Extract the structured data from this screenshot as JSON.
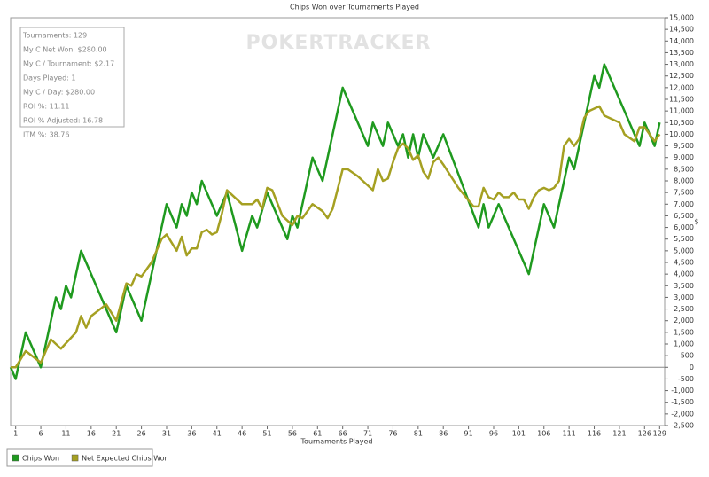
{
  "chart_data": {
    "type": "line",
    "title": "Chips Won over Tournaments Played",
    "xlabel": "Tournaments Played",
    "ylabel": "$",
    "watermark": "POKERTRACKER",
    "info_box": [
      "Tournaments: 129",
      "My C Net Won: $280.00",
      "My C / Tournament: $2.17",
      "Days Played: 1",
      "My C / Day: $280.00",
      "ROI %: 11.11",
      "ROI % Adjusted: 16.78",
      "ITM %: 38.76"
    ],
    "xlim": [
      0,
      130
    ],
    "ylim": [
      -2500,
      15000
    ],
    "xticks": [
      1,
      6,
      11,
      16,
      21,
      26,
      31,
      36,
      41,
      46,
      51,
      56,
      61,
      66,
      71,
      76,
      81,
      86,
      91,
      96,
      101,
      106,
      111,
      116,
      121,
      126,
      129
    ],
    "yticks": [
      {
        "value": -2500,
        "label": "-2,500"
      },
      {
        "value": -2000,
        "label": "-2,000"
      },
      {
        "value": -1500,
        "label": "-1,500"
      },
      {
        "value": -1000,
        "label": "-1,000"
      },
      -500,
      0,
      500,
      {
        "value": 1000,
        "label": "1,000"
      },
      {
        "value": 1500,
        "label": "1,500"
      },
      {
        "value": 2000,
        "label": "2,000"
      },
      {
        "value": 2500,
        "label": "2,500"
      },
      {
        "value": 3000,
        "label": "3,000"
      },
      {
        "value": 3500,
        "label": "3,500"
      },
      {
        "value": 4000,
        "label": "4,000"
      },
      {
        "value": 4500,
        "label": "4,500"
      },
      {
        "value": 5000,
        "label": "5,000"
      },
      {
        "value": 5500,
        "label": "5,500"
      },
      {
        "value": 6000,
        "label": "6,000"
      },
      {
        "value": 6500,
        "label": "6,500"
      },
      {
        "value": 7000,
        "label": "7,000"
      },
      {
        "value": 7500,
        "label": "7,500"
      },
      {
        "value": 8000,
        "label": "8,000"
      },
      {
        "value": 8500,
        "label": "8,500"
      },
      {
        "value": 9000,
        "label": "9,000"
      },
      {
        "value": 9500,
        "label": "9,500"
      },
      {
        "value": 10000,
        "label": "10,000"
      },
      {
        "value": 10500,
        "label": "10,500"
      },
      {
        "value": 11000,
        "label": "11,000"
      },
      {
        "value": 11500,
        "label": "11,500"
      },
      {
        "value": 12000,
        "label": "12,000"
      },
      {
        "value": 12500,
        "label": "12,500"
      },
      {
        "value": 13000,
        "label": "13,000"
      },
      {
        "value": 13500,
        "label": "13,500"
      },
      {
        "value": 14000,
        "label": "14,000"
      },
      {
        "value": 14500,
        "label": "14,500"
      },
      {
        "value": 15000,
        "label": "15,000"
      }
    ],
    "series": [
      {
        "name": "Chips Won",
        "color": "#1f9a1f",
        "x": [
          0,
          1,
          3,
          6,
          9,
          10,
          11,
          12,
          14,
          21,
          23,
          26,
          31,
          33,
          34,
          35,
          36,
          37,
          38,
          41,
          43,
          46,
          48,
          49,
          51,
          55,
          56,
          57,
          60,
          62,
          66,
          71,
          72,
          74,
          75,
          77,
          78,
          79,
          80,
          81,
          82,
          84,
          86,
          93,
          94,
          95,
          97,
          103,
          106,
          108,
          111,
          112,
          116,
          117,
          118,
          125,
          126,
          128,
          129
        ],
        "values": [
          0,
          -500,
          1500,
          0,
          3000,
          2500,
          3500,
          3000,
          5000,
          1500,
          3500,
          2000,
          7000,
          6000,
          7000,
          6500,
          7500,
          7000,
          8000,
          6500,
          7500,
          5000,
          6500,
          6000,
          7500,
          5500,
          6500,
          6000,
          9000,
          8000,
          12000,
          9500,
          10500,
          9500,
          10500,
          9500,
          10000,
          9000,
          10000,
          9000,
          10000,
          9000,
          10000,
          6000,
          7000,
          6000,
          7000,
          4000,
          7000,
          6000,
          9000,
          8500,
          12500,
          12000,
          13000,
          9500,
          10500,
          9500,
          10500
        ]
      },
      {
        "name": "Net Expected Chips Won",
        "color": "#a5a022",
        "x": [
          0,
          1,
          3,
          6,
          8,
          10,
          13,
          14,
          15,
          16,
          19,
          21,
          23,
          24,
          25,
          26,
          28,
          30,
          31,
          33,
          34,
          35,
          36,
          37,
          38,
          39,
          40,
          41,
          42,
          43,
          44,
          46,
          48,
          49,
          50,
          51,
          52,
          54,
          56,
          57,
          58,
          60,
          62,
          63,
          64,
          66,
          67,
          69,
          70,
          72,
          73,
          74,
          75,
          76,
          77,
          78,
          79,
          80,
          81,
          82,
          83,
          84,
          85,
          86,
          89,
          92,
          93,
          94,
          95,
          96,
          97,
          98,
          99,
          100,
          101,
          102,
          103,
          104,
          105,
          106,
          107,
          108,
          109,
          110,
          111,
          112,
          113,
          114,
          115,
          116,
          117,
          118,
          119,
          121,
          122,
          124,
          125,
          126,
          127,
          128,
          129
        ],
        "values": [
          0,
          0,
          700,
          200,
          1200,
          800,
          1500,
          2200,
          1700,
          2200,
          2700,
          2000,
          3600,
          3500,
          4000,
          3900,
          4500,
          5500,
          5700,
          5000,
          5600,
          4800,
          5100,
          5100,
          5800,
          5900,
          5700,
          5800,
          6600,
          7600,
          7400,
          7000,
          7000,
          7200,
          6800,
          7700,
          7600,
          6500,
          6100,
          6500,
          6400,
          7000,
          6700,
          6400,
          6800,
          8500,
          8500,
          8200,
          8000,
          7600,
          8500,
          8000,
          8100,
          8800,
          9400,
          9600,
          9400,
          8900,
          9100,
          8400,
          8100,
          8800,
          9000,
          8700,
          7700,
          6900,
          6900,
          7700,
          7300,
          7200,
          7500,
          7300,
          7300,
          7500,
          7200,
          7200,
          6800,
          7300,
          7600,
          7700,
          7600,
          7700,
          8000,
          9500,
          9800,
          9500,
          9800,
          10700,
          11000,
          11100,
          11200,
          10800,
          10700,
          10500,
          10000,
          9700,
          10300,
          10300,
          10000,
          9700,
          10000
        ]
      }
    ]
  }
}
